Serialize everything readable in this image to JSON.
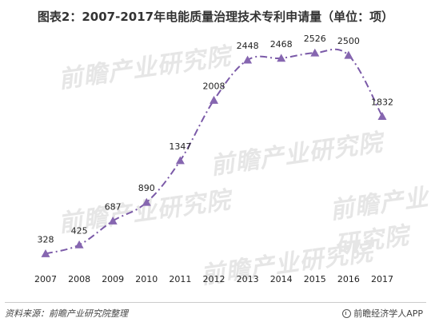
{
  "title": "图表2：2007-2017年电能质量治理技术专利申请量（单位：项）",
  "watermark_text": "前瞻产业研究院",
  "footer": {
    "source": "资料来源：前瞻产业研究院整理",
    "brand": "前瞻经济学人APP",
    "brand_icon": "brand-logo-icon"
  },
  "colors": {
    "line": "#7b5aa8",
    "marker": "#8666b0",
    "text": "#222222"
  },
  "chart_data": {
    "type": "line",
    "title": "图表2：2007-2017年电能质量治理技术专利申请量（单位：项）",
    "xlabel": "",
    "ylabel": "",
    "categories": [
      "2007",
      "2008",
      "2009",
      "2010",
      "2011",
      "2012",
      "2013",
      "2014",
      "2015",
      "2016",
      "2017"
    ],
    "series": [
      {
        "values": [
          328,
          425,
          687,
          890,
          1347,
          2008,
          2448,
          2468,
          2526,
          2500,
          1832
        ]
      }
    ],
    "data_labels": [
      "328",
      "425",
      "687",
      "890",
      "1347",
      "2008",
      "2448",
      "2468",
      "2526",
      "2500",
      "1832"
    ],
    "ylim": [
      0,
      3000
    ],
    "grid": false,
    "legend": "none",
    "line_style": "dash-dot, smoothed",
    "marker": "triangle"
  }
}
